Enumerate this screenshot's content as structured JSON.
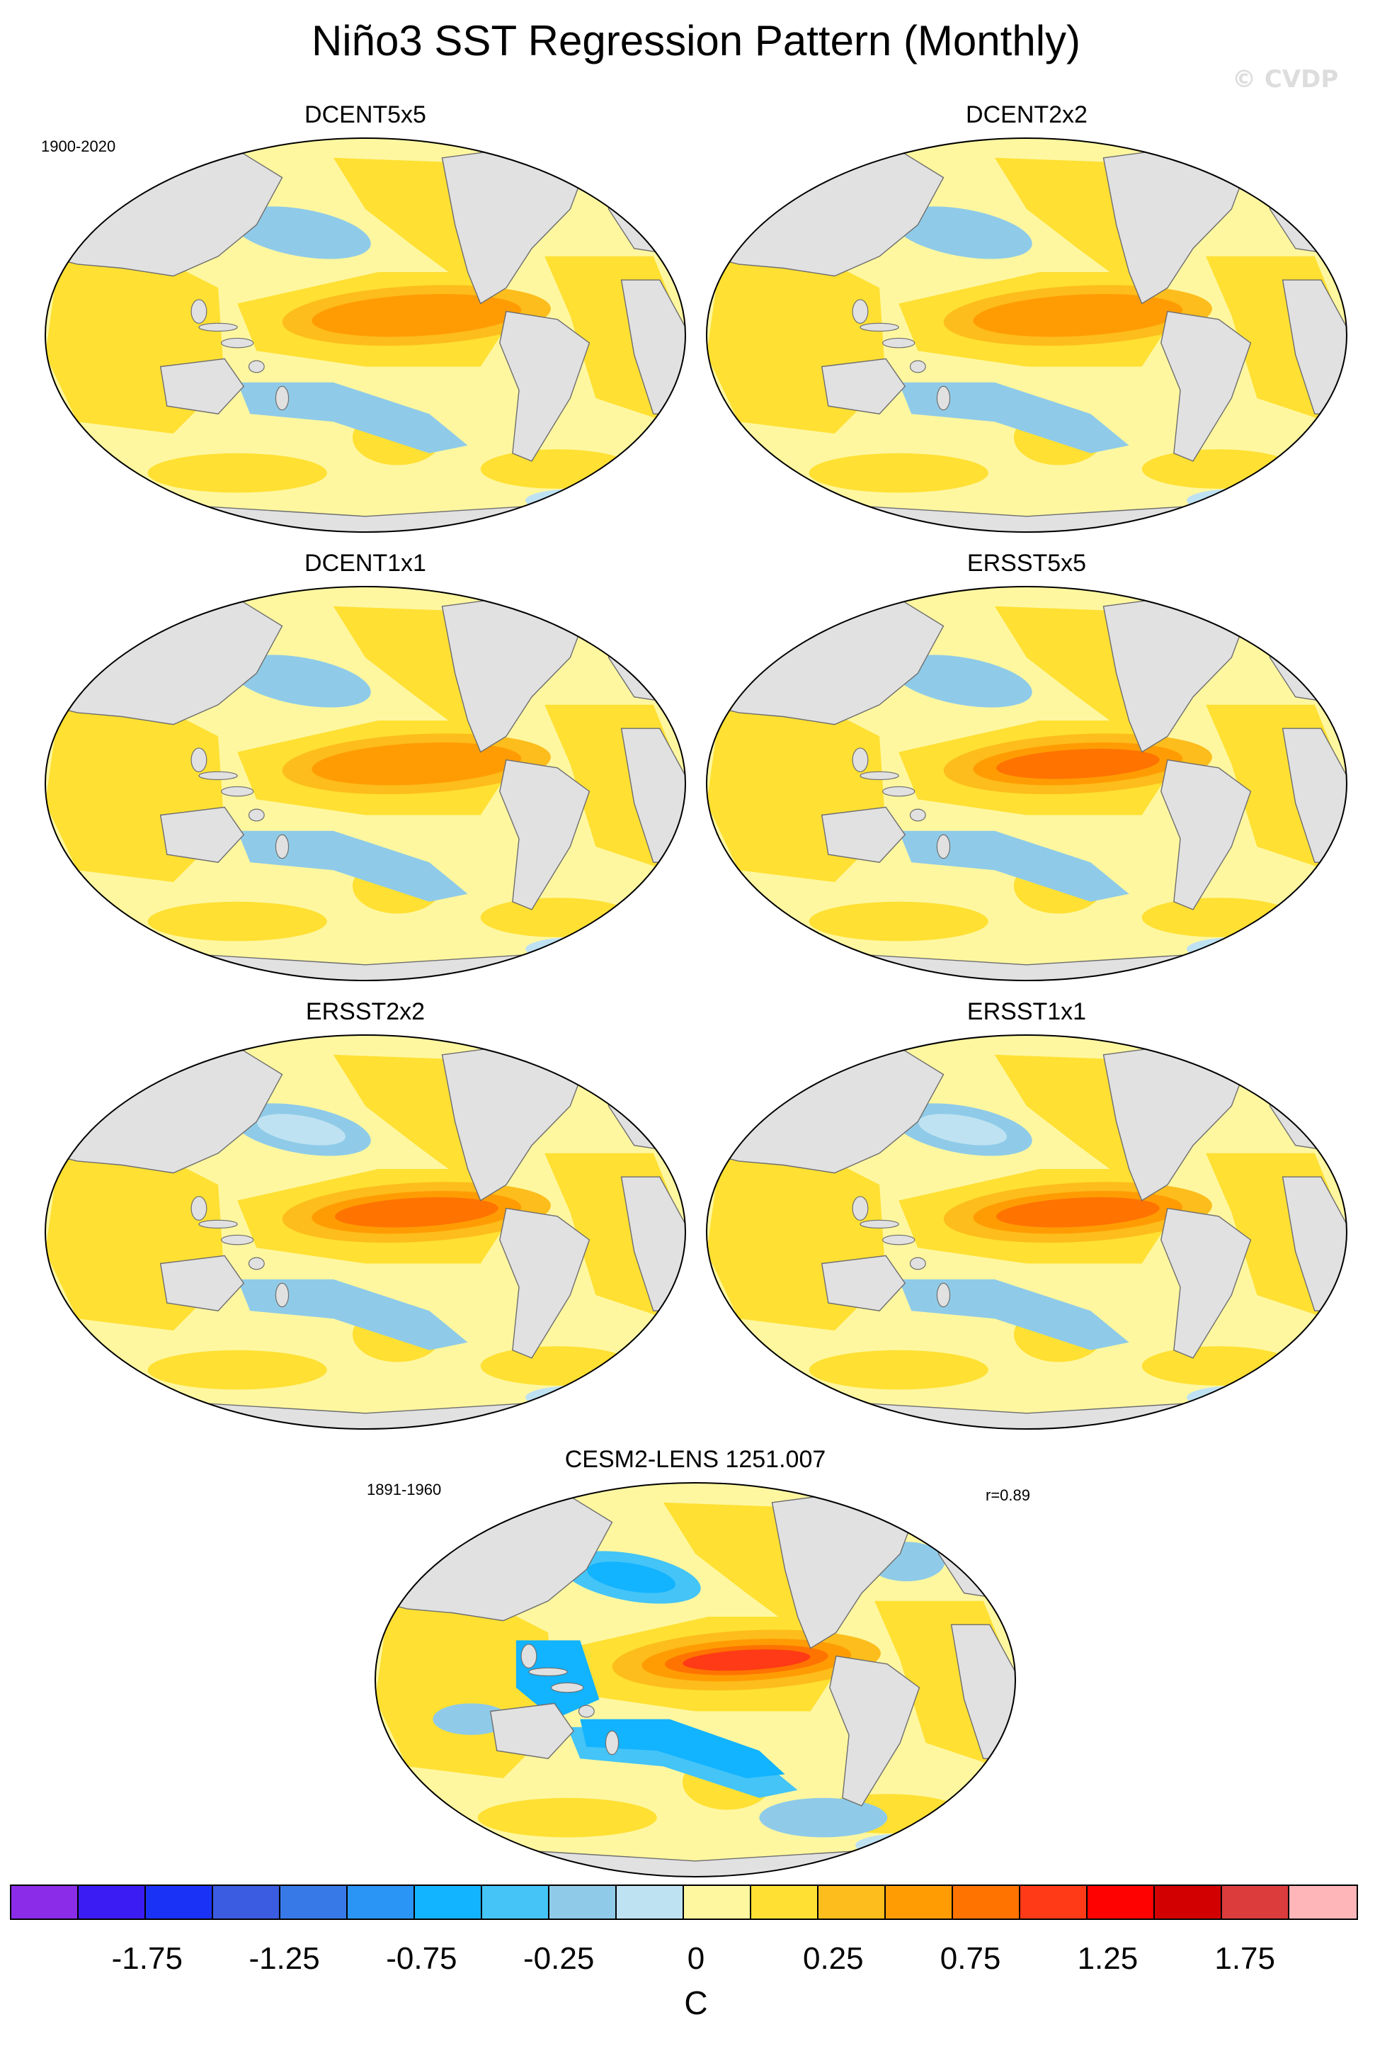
{
  "figure": {
    "title": "Niño3 SST Regression Pattern (Monthly)",
    "watermark": "© CVDP",
    "colors": {
      "land": "#e1e1e1",
      "coast": "#6e6e6e",
      "ocean_zero": "#fff7a0",
      "map_frame": "#000000"
    }
  },
  "panels": [
    {
      "id": "dcent5x5",
      "title": "DCENT5x5",
      "period": "1900-2020",
      "corr": "",
      "enso_max_bin": 13
    },
    {
      "id": "dcent2x2",
      "title": "DCENT2x2",
      "period": "",
      "corr": "",
      "enso_max_bin": 13
    },
    {
      "id": "dcent1x1",
      "title": "DCENT1x1",
      "period": "",
      "corr": "",
      "enso_max_bin": 13
    },
    {
      "id": "ersst5x5",
      "title": "ERSST5x5",
      "period": "",
      "corr": "",
      "enso_max_bin": 14
    },
    {
      "id": "ersst2x2",
      "title": "ERSST2x2",
      "period": "",
      "corr": "",
      "enso_max_bin": 14
    },
    {
      "id": "ersst1x1",
      "title": "ERSST1x1",
      "period": "",
      "corr": "",
      "enso_max_bin": 14
    },
    {
      "id": "cesm2",
      "title": "CESM2-LENS 1251.007",
      "period": "1891-1960",
      "corr": "r=0.89",
      "enso_max_bin": 15
    }
  ],
  "colorbar": {
    "unit": "C",
    "bin_edges": [
      -2.0,
      -1.75,
      -1.5,
      -1.25,
      -1.0,
      -0.75,
      -0.5,
      -0.25,
      -0.1,
      0,
      0.1,
      0.25,
      0.5,
      0.75,
      1.0,
      1.25,
      1.5,
      1.75,
      2.0
    ],
    "colors": [
      "#8a2ce8",
      "#3b1cf2",
      "#1a32f5",
      "#3b5be0",
      "#3879e8",
      "#2a95f5",
      "#12b3ff",
      "#44c4f7",
      "#8fcbe8",
      "#bfe2f2",
      "#fff7a0",
      "#ffe033",
      "#fdbd1c",
      "#ff9c04",
      "#ff7300",
      "#ff3a16",
      "#fe0202",
      "#d20000",
      "#dc3c3c",
      "#ffb6b9"
    ],
    "tick_labels": [
      "-1.75",
      "-1.25",
      "-0.75",
      "-0.25",
      "0",
      "0.25",
      "0.75",
      "1.25",
      "1.75"
    ],
    "tick_boundary_index": [
      2,
      4,
      6,
      8,
      10,
      12,
      14,
      16,
      18
    ]
  }
}
